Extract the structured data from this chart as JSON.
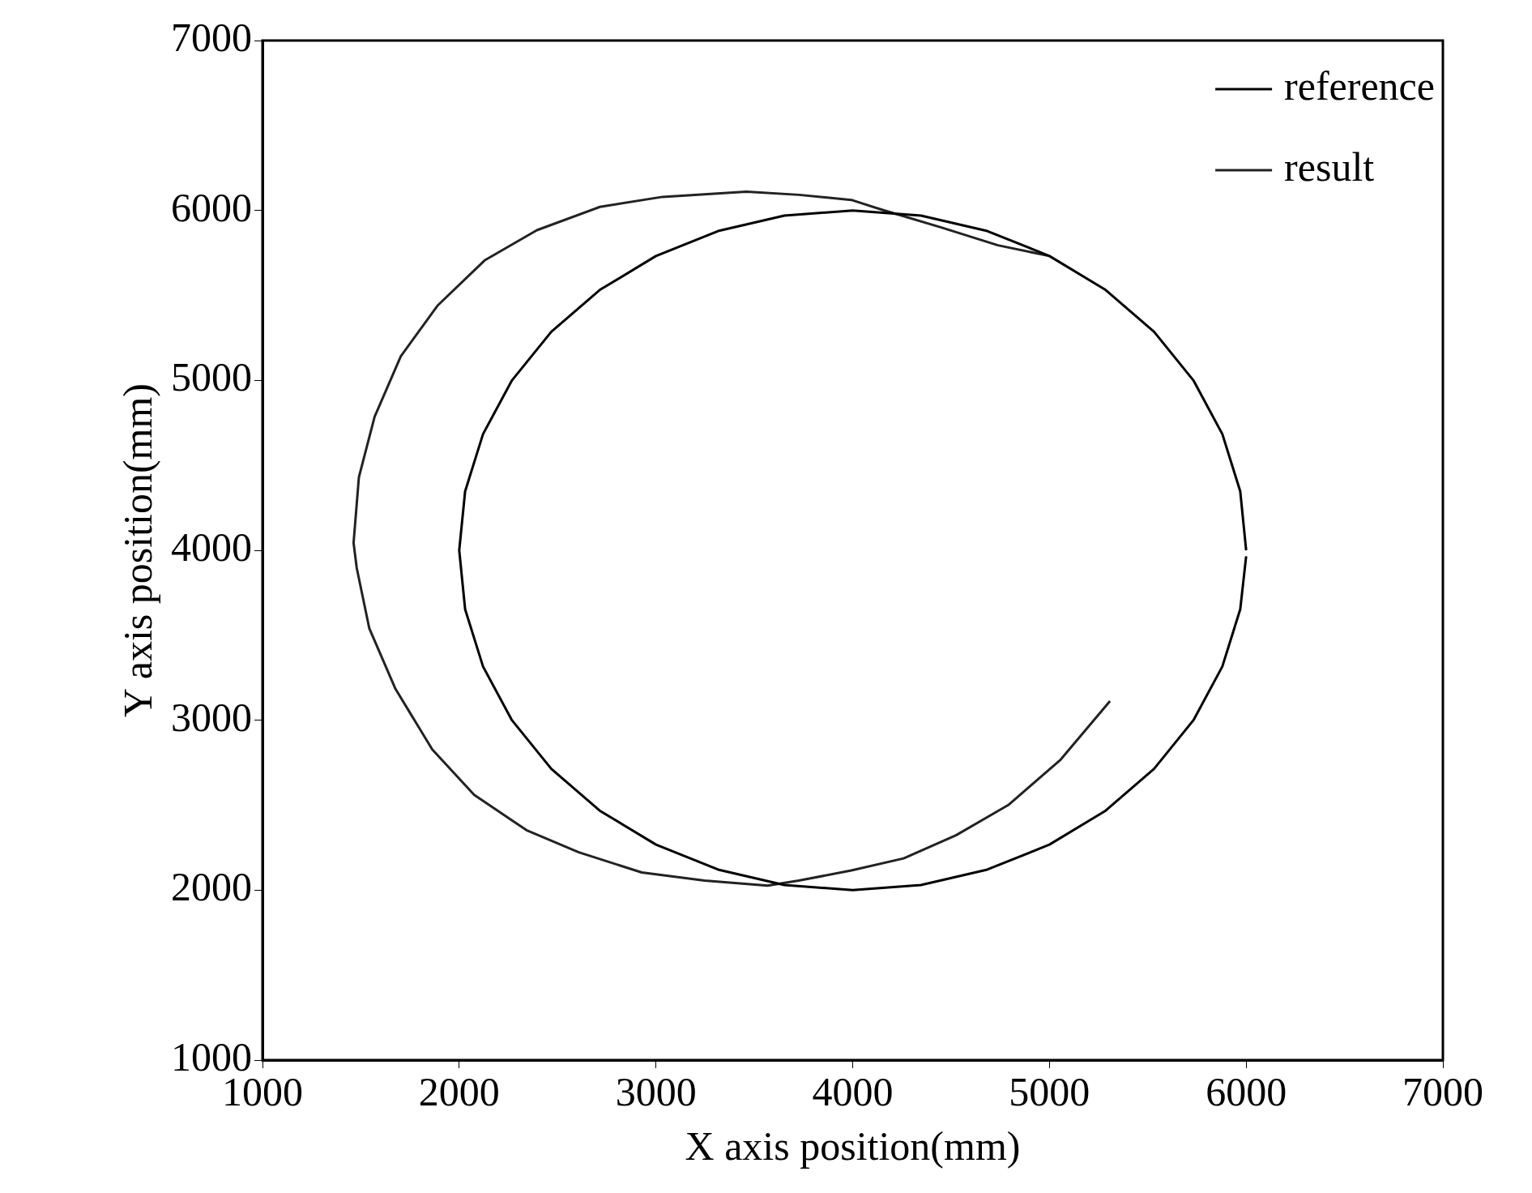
{
  "chart_data": {
    "type": "line",
    "xlabel": "X axis position(mm)",
    "ylabel": "Y axis position(mm)",
    "xlim": [
      1000,
      7000
    ],
    "ylim": [
      1000,
      7000
    ],
    "xticks": [
      1000,
      2000,
      3000,
      4000,
      5000,
      6000,
      7000
    ],
    "yticks": [
      1000,
      2000,
      3000,
      4000,
      5000,
      6000,
      7000
    ],
    "grid": false,
    "legend": "top right",
    "marker": "none",
    "line_style": "solid",
    "series": [
      {
        "name": "reference",
        "color": "#000000",
        "x": [
          6000,
          5970,
          5879,
          5732,
          5532,
          5286,
          5000,
          4684,
          4347,
          4000,
          3653,
          3316,
          3000,
          2714,
          2468,
          2268,
          2121,
          2030,
          2000,
          2030,
          2121,
          2268,
          2468,
          2714,
          3000,
          3316,
          3653,
          4000,
          4347,
          4684,
          5000,
          5286,
          5532,
          5732,
          5879,
          5970,
          6000
        ],
        "values": [
          4000,
          4347,
          4684,
          5000,
          5286,
          5532,
          5732,
          5879,
          5970,
          6000,
          5970,
          5879,
          5732,
          5532,
          5286,
          5000,
          4684,
          4347,
          4000,
          3653,
          3316,
          3000,
          2714,
          2468,
          2268,
          2121,
          2030,
          2000,
          2030,
          2121,
          2268,
          2468,
          2714,
          3000,
          3316,
          3653,
          3965
        ]
      },
      {
        "name": "result",
        "color": "#222222",
        "x": [
          5308,
          5057,
          4791,
          4525,
          4259,
          3993,
          3726,
          3567,
          3247,
          2928,
          2608,
          2342,
          2076,
          1863,
          1676,
          1543,
          1479,
          1463,
          1490,
          1570,
          1703,
          1889,
          2129,
          2395,
          2715,
          3034,
          3460,
          3726,
          3993,
          4152,
          4450,
          4738,
          5000
        ],
        "values": [
          3113,
          2768,
          2501,
          2323,
          2187,
          2116,
          2056,
          2027,
          2056,
          2104,
          2223,
          2353,
          2561,
          2828,
          3184,
          3540,
          3896,
          4044,
          4430,
          4786,
          5142,
          5439,
          5706,
          5884,
          6021,
          6080,
          6110,
          6092,
          6062,
          6003,
          5900,
          5795,
          5732
        ]
      }
    ]
  }
}
